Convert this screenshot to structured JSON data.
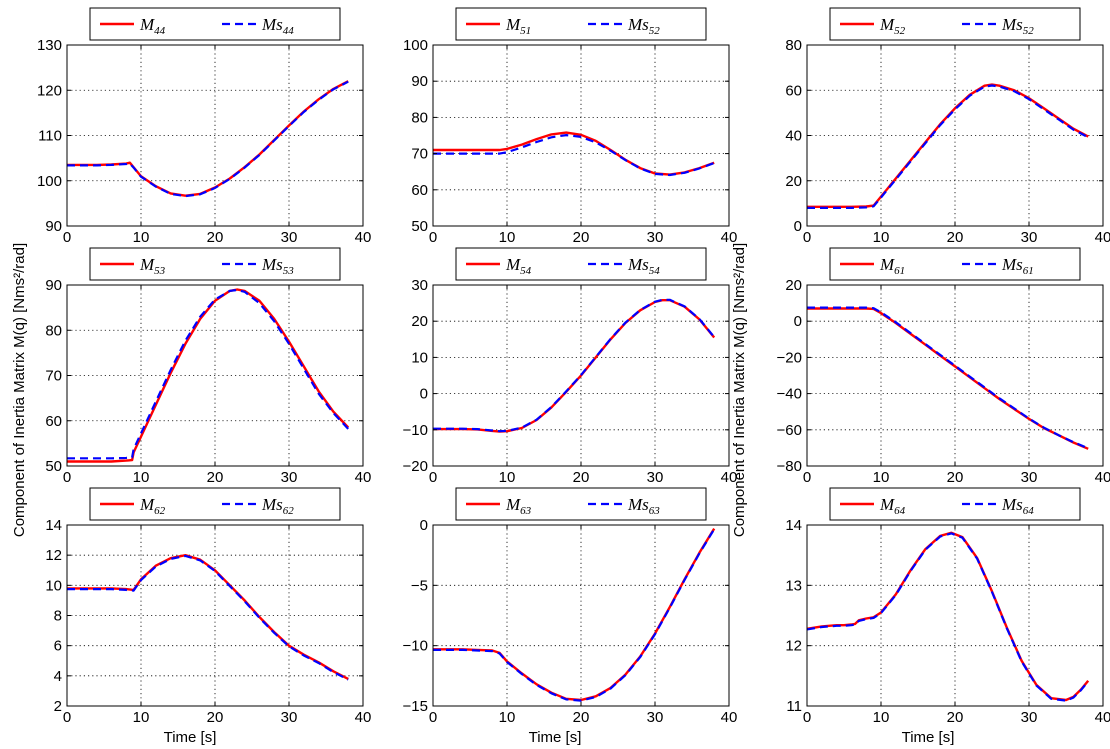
{
  "figure": {
    "ylabel": "Component of Inertia Matrix M(q) [Nms²/rad]",
    "xlabel": "Time [s]"
  },
  "colors": {
    "measured": "#ff0000",
    "estimated": "#0000ff"
  },
  "chart_data": [
    {
      "type": "line",
      "grid": true,
      "legend_position": "top",
      "xlim": [
        0,
        40
      ],
      "ylim": [
        90,
        130
      ],
      "xticks": [
        0,
        10,
        20,
        30,
        40
      ],
      "yticks": [
        90,
        100,
        110,
        120,
        130
      ],
      "x": [
        0,
        2,
        4,
        6,
        8,
        8.5,
        9,
        10,
        12,
        14,
        16,
        18,
        20,
        22,
        24,
        26,
        28,
        30,
        32,
        34,
        36,
        38
      ],
      "series": [
        {
          "name": "M44",
          "legend_base": "M",
          "legend_sub": "44",
          "style": "solid",
          "values": [
            103.5,
            103.5,
            103.5,
            103.6,
            103.8,
            104,
            103,
            101,
            98.8,
            97.2,
            96.7,
            97.1,
            98.5,
            100.5,
            103,
            105.8,
            109,
            112.2,
            115.3,
            118,
            120.3,
            122
          ]
        },
        {
          "name": "Ms44",
          "legend_base": "Ms",
          "legend_sub": "44",
          "style": "dashed",
          "values": [
            103.4,
            103.4,
            103.4,
            103.5,
            103.7,
            103.8,
            102.9,
            100.9,
            98.7,
            97.1,
            96.6,
            97,
            98.4,
            100.4,
            102.9,
            105.7,
            108.9,
            112.1,
            115.2,
            117.9,
            120.2,
            121.9
          ]
        }
      ]
    },
    {
      "type": "line",
      "grid": true,
      "legend_position": "top",
      "xlim": [
        0,
        40
      ],
      "ylim": [
        50,
        100
      ],
      "xticks": [
        0,
        10,
        20,
        30,
        40
      ],
      "yticks": [
        50,
        60,
        70,
        80,
        90,
        100
      ],
      "x": [
        0,
        2,
        4,
        6,
        8,
        9,
        10,
        12,
        14,
        16,
        18,
        20,
        22,
        24,
        26,
        28,
        30,
        32,
        34,
        36,
        38
      ],
      "series": [
        {
          "name": "M51",
          "legend_base": "M",
          "legend_sub": "51",
          "style": "solid",
          "values": [
            71,
            71,
            71,
            71,
            71,
            71,
            71.3,
            72.5,
            74,
            75.3,
            75.8,
            75.2,
            73.5,
            71,
            68.3,
            66,
            64.5,
            64.2,
            64.8,
            66,
            67.5
          ]
        },
        {
          "name": "Ms52",
          "legend_base": "Ms",
          "legend_sub": "52",
          "style": "dashed",
          "values": [
            70,
            70,
            70,
            70,
            70,
            70,
            70.4,
            71.7,
            73.2,
            74.5,
            75.1,
            74.6,
            73.1,
            70.8,
            68.2,
            65.9,
            64.4,
            64.1,
            64.7,
            65.9,
            67.4
          ]
        }
      ]
    },
    {
      "type": "line",
      "grid": true,
      "legend_position": "top",
      "xlim": [
        0,
        40
      ],
      "ylim": [
        0,
        80
      ],
      "xticks": [
        0,
        10,
        20,
        30,
        40
      ],
      "yticks": [
        0,
        20,
        40,
        60,
        80
      ],
      "x": [
        0,
        2,
        4,
        6,
        8,
        9,
        10,
        12,
        14,
        16,
        18,
        20,
        22,
        24,
        25,
        26,
        28,
        30,
        32,
        34,
        36,
        38
      ],
      "series": [
        {
          "name": "M52",
          "legend_base": "M",
          "legend_sub": "52",
          "style": "solid",
          "values": [
            8.5,
            8.5,
            8.5,
            8.5,
            8.6,
            9,
            13,
            21,
            29,
            37,
            45,
            52,
            58,
            62,
            62.5,
            62,
            60,
            56.5,
            52,
            47.5,
            43,
            39.5
          ]
        },
        {
          "name": "Ms52",
          "legend_base": "Ms",
          "legend_sub": "52",
          "style": "dashed",
          "values": [
            8,
            8,
            8,
            8,
            8.2,
            8.7,
            12.6,
            20.6,
            28.6,
            36.6,
            44.6,
            51.6,
            57.6,
            61.6,
            62.1,
            61.6,
            59.6,
            56.1,
            51.6,
            47.1,
            42.6,
            39.2
          ]
        }
      ]
    },
    {
      "type": "line",
      "grid": true,
      "legend_position": "top",
      "xlim": [
        0,
        40
      ],
      "ylim": [
        50,
        90
      ],
      "xticks": [
        0,
        10,
        20,
        30,
        40
      ],
      "yticks": [
        50,
        60,
        70,
        80,
        90
      ],
      "x": [
        0,
        2,
        4,
        6,
        8,
        8.8,
        9,
        10,
        12,
        14,
        16,
        18,
        20,
        22,
        23,
        24,
        26,
        28,
        30,
        32,
        34,
        36,
        38
      ],
      "series": [
        {
          "name": "M53",
          "legend_base": "M",
          "legend_sub": "53",
          "style": "solid",
          "values": [
            51,
            51,
            51,
            51,
            51.2,
            51.3,
            53,
            56.5,
            63.5,
            70.5,
            77,
            82.5,
            86.5,
            88.7,
            89,
            88.7,
            86.5,
            82.5,
            77.5,
            72,
            66.5,
            62,
            58.5
          ]
        },
        {
          "name": "Ms53",
          "legend_base": "Ms",
          "legend_sub": "53",
          "style": "dashed",
          "values": [
            51.7,
            51.7,
            51.7,
            51.7,
            51.8,
            51.9,
            53.7,
            57.2,
            64.2,
            71.2,
            77.7,
            83,
            86.8,
            88.7,
            88.9,
            88.5,
            86,
            82,
            77,
            71.5,
            66,
            61.7,
            58.2
          ]
        }
      ]
    },
    {
      "type": "line",
      "grid": true,
      "legend_position": "top",
      "xlim": [
        0,
        40
      ],
      "ylim": [
        -20,
        30
      ],
      "xticks": [
        0,
        10,
        20,
        30,
        40
      ],
      "yticks": [
        -20,
        -10,
        0,
        10,
        20,
        30
      ],
      "x": [
        0,
        2,
        4,
        6,
        8,
        9,
        10,
        12,
        14,
        16,
        18,
        20,
        22,
        24,
        26,
        28,
        30,
        31,
        32,
        34,
        36,
        38
      ],
      "series": [
        {
          "name": "M54",
          "legend_base": "M",
          "legend_sub": "54",
          "style": "solid",
          "values": [
            -9.8,
            -9.8,
            -9.8,
            -9.9,
            -10.3,
            -10.5,
            -10.4,
            -9.5,
            -7.3,
            -3.8,
            0.5,
            5,
            10,
            15,
            19.5,
            23,
            25.3,
            25.8,
            25.8,
            24,
            20.5,
            15.5
          ]
        },
        {
          "name": "Ms54",
          "legend_base": "Ms",
          "legend_sub": "54",
          "style": "dashed",
          "values": [
            -9.7,
            -9.7,
            -9.7,
            -9.8,
            -10.2,
            -10.4,
            -10.3,
            -9.4,
            -7.2,
            -3.7,
            0.6,
            5.1,
            10.1,
            15.1,
            19.6,
            23.1,
            25.4,
            25.9,
            25.9,
            24.1,
            20.6,
            15.6
          ]
        }
      ]
    },
    {
      "type": "line",
      "grid": true,
      "legend_position": "top",
      "xlim": [
        0,
        40
      ],
      "ylim": [
        -80,
        20
      ],
      "xticks": [
        0,
        10,
        20,
        30,
        40
      ],
      "yticks": [
        -80,
        -60,
        -40,
        -20,
        0,
        20
      ],
      "x": [
        0,
        2,
        4,
        6,
        8,
        9,
        10,
        12,
        14,
        16,
        18,
        20,
        22,
        24,
        26,
        28,
        30,
        32,
        34,
        36,
        38
      ],
      "series": [
        {
          "name": "M61",
          "legend_base": "M",
          "legend_sub": "61",
          "style": "solid",
          "values": [
            7,
            7,
            7,
            7,
            7,
            6.8,
            4.5,
            -1,
            -7,
            -13,
            -19,
            -25,
            -31,
            -37,
            -43,
            -48.5,
            -54,
            -59,
            -63,
            -67,
            -70.5
          ]
        },
        {
          "name": "Ms61",
          "legend_base": "Ms",
          "legend_sub": "61",
          "style": "dashed",
          "values": [
            7.5,
            7.5,
            7.5,
            7.5,
            7.5,
            7.2,
            4.9,
            -0.6,
            -6.6,
            -12.6,
            -18.6,
            -24.6,
            -30.6,
            -36.6,
            -42.6,
            -48.2,
            -53.8,
            -58.8,
            -63,
            -66.8,
            -70.2
          ]
        }
      ]
    },
    {
      "type": "line",
      "grid": true,
      "legend_position": "top",
      "xlim": [
        0,
        40
      ],
      "ylim": [
        2,
        14
      ],
      "xticks": [
        0,
        10,
        20,
        30,
        40
      ],
      "yticks": [
        2,
        4,
        6,
        8,
        10,
        12,
        14
      ],
      "x": [
        0,
        2,
        4,
        6,
        8,
        9,
        10,
        12,
        14,
        16,
        18,
        20,
        22,
        24,
        26,
        28,
        30,
        32,
        34,
        36,
        38
      ],
      "series": [
        {
          "name": "M62",
          "legend_base": "M",
          "legend_sub": "62",
          "style": "solid",
          "values": [
            9.8,
            9.8,
            9.8,
            9.8,
            9.75,
            9.7,
            10.4,
            11.3,
            11.8,
            12,
            11.7,
            11,
            10,
            9,
            7.9,
            6.9,
            6,
            5.4,
            4.9,
            4.3,
            3.8
          ]
        },
        {
          "name": "Ms62",
          "legend_base": "Ms",
          "legend_sub": "62",
          "style": "dashed",
          "values": [
            9.75,
            9.75,
            9.75,
            9.75,
            9.7,
            9.65,
            10.35,
            11.25,
            11.75,
            11.95,
            11.65,
            10.95,
            9.95,
            8.95,
            7.85,
            6.85,
            5.95,
            5.35,
            4.85,
            4.25,
            3.75
          ]
        }
      ]
    },
    {
      "type": "line",
      "grid": true,
      "legend_position": "top",
      "xlim": [
        0,
        40
      ],
      "ylim": [
        -15,
        0
      ],
      "xticks": [
        0,
        10,
        20,
        30,
        40
      ],
      "yticks": [
        -15,
        -10,
        -5,
        0
      ],
      "x": [
        0,
        2,
        4,
        6,
        8,
        9,
        10,
        12,
        14,
        16,
        18,
        20,
        22,
        24,
        26,
        28,
        30,
        32,
        34,
        36,
        38
      ],
      "series": [
        {
          "name": "M63",
          "legend_base": "M",
          "legend_sub": "63",
          "style": "solid",
          "values": [
            -10.3,
            -10.3,
            -10.3,
            -10.35,
            -10.4,
            -10.6,
            -11.3,
            -12.3,
            -13.2,
            -13.9,
            -14.4,
            -14.5,
            -14.2,
            -13.5,
            -12.4,
            -10.9,
            -9,
            -6.8,
            -4.5,
            -2.3,
            -0.3
          ]
        },
        {
          "name": "Ms63",
          "legend_base": "Ms",
          "legend_sub": "63",
          "style": "dashed",
          "values": [
            -10.35,
            -10.35,
            -10.35,
            -10.4,
            -10.45,
            -10.65,
            -11.35,
            -12.35,
            -13.25,
            -13.95,
            -14.45,
            -14.55,
            -14.25,
            -13.55,
            -12.45,
            -10.95,
            -9.05,
            -6.85,
            -4.55,
            -2.35,
            -0.35
          ]
        }
      ]
    },
    {
      "type": "line",
      "grid": true,
      "legend_position": "top",
      "xlim": [
        0,
        40
      ],
      "ylim": [
        11,
        14
      ],
      "xticks": [
        0,
        10,
        20,
        30,
        40
      ],
      "yticks": [
        11,
        12,
        13,
        14
      ],
      "x": [
        0,
        2,
        4,
        5,
        6,
        6.5,
        7,
        8,
        9,
        10,
        12,
        14,
        16,
        18,
        19.5,
        21,
        23,
        25,
        27,
        29,
        31,
        33,
        35,
        36,
        37,
        38
      ],
      "series": [
        {
          "name": "M64",
          "legend_base": "M",
          "legend_sub": "64",
          "style": "solid",
          "values": [
            12.28,
            12.32,
            12.34,
            12.34,
            12.35,
            12.36,
            12.42,
            12.45,
            12.47,
            12.55,
            12.85,
            13.25,
            13.6,
            13.82,
            13.87,
            13.8,
            13.45,
            12.9,
            12.3,
            11.75,
            11.35,
            11.13,
            11.1,
            11.15,
            11.27,
            11.42
          ]
        },
        {
          "name": "Ms64",
          "legend_base": "Ms",
          "legend_sub": "64",
          "style": "dashed",
          "values": [
            12.27,
            12.31,
            12.33,
            12.33,
            12.34,
            12.35,
            12.41,
            12.44,
            12.46,
            12.54,
            12.84,
            13.24,
            13.59,
            13.81,
            13.86,
            13.79,
            13.44,
            12.89,
            12.29,
            11.74,
            11.34,
            11.12,
            11.09,
            11.14,
            11.26,
            11.41
          ]
        }
      ]
    }
  ]
}
